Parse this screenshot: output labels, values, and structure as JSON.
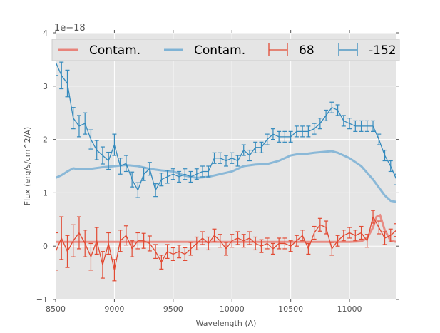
{
  "chart_data": {
    "type": "line",
    "title": "",
    "xlabel": "Wavelength (A)",
    "ylabel": "Flux (erg/s/cm^2/A)",
    "y_offset_label": "1e−18",
    "xlim": [
      8500,
      11400
    ],
    "ylim": [
      -1,
      4
    ],
    "xticks": [
      8500,
      9000,
      9500,
      10000,
      10500,
      11000
    ],
    "xtick_labels": [
      "8500",
      "9000",
      "9500",
      "10000",
      "10500",
      "11000"
    ],
    "yticks": [
      -1,
      0,
      1,
      2,
      3,
      4
    ],
    "ytick_labels": [
      "−1",
      "0",
      "1",
      "2",
      "3",
      "4"
    ],
    "grid": true,
    "legend_position": "top",
    "legend": [
      "Contam.",
      "Contam.",
      "68",
      "-152"
    ],
    "colors": {
      "red": "#e24a33",
      "blue": "#348abd",
      "red_contam": "#e8837a",
      "blue_contam": "#7fb3d5",
      "axes_bg": "#e5e5e5"
    },
    "x": [
      8500,
      8550,
      8600,
      8650,
      8700,
      8750,
      8800,
      8850,
      8900,
      8950,
      9000,
      9050,
      9100,
      9150,
      9200,
      9250,
      9300,
      9350,
      9400,
      9450,
      9500,
      9550,
      9600,
      9650,
      9700,
      9750,
      9800,
      9850,
      9900,
      9950,
      10000,
      10050,
      10100,
      10150,
      10200,
      10250,
      10300,
      10350,
      10400,
      10450,
      10500,
      10550,
      10600,
      10650,
      10700,
      10750,
      10800,
      10850,
      10900,
      10950,
      11000,
      11050,
      11100,
      11150,
      11200,
      11250,
      11300,
      11350,
      11400
    ],
    "series": [
      {
        "name": "68",
        "kind": "errorbar",
        "color": "red",
        "values": [
          -0.1,
          0.15,
          -0.1,
          0.1,
          0.25,
          0.05,
          -0.2,
          0.1,
          -0.35,
          0.05,
          -0.45,
          0.1,
          0.2,
          -0.05,
          0.1,
          0.1,
          0.05,
          -0.1,
          -0.3,
          -0.1,
          -0.15,
          -0.1,
          -0.15,
          -0.05,
          0.05,
          0.15,
          0.05,
          0.2,
          0.1,
          -0.05,
          0.1,
          0.15,
          0.1,
          0.15,
          0.05,
          0.0,
          0.05,
          -0.05,
          0.05,
          0.05,
          0.0,
          0.1,
          0.2,
          -0.05,
          0.25,
          0.4,
          0.35,
          -0.05,
          0.1,
          0.2,
          0.25,
          0.2,
          0.25,
          0.1,
          0.55,
          0.35,
          0.15,
          0.2,
          0.3
        ],
        "errors": [
          0.35,
          0.4,
          0.3,
          0.3,
          0.3,
          0.25,
          0.25,
          0.25,
          0.25,
          0.2,
          0.2,
          0.2,
          0.18,
          0.15,
          0.15,
          0.14,
          0.14,
          0.13,
          0.13,
          0.13,
          0.12,
          0.12,
          0.12,
          0.12,
          0.12,
          0.12,
          0.12,
          0.12,
          0.12,
          0.12,
          0.12,
          0.12,
          0.12,
          0.12,
          0.12,
          0.12,
          0.1,
          0.1,
          0.1,
          0.1,
          0.1,
          0.1,
          0.1,
          0.1,
          0.12,
          0.12,
          0.12,
          0.12,
          0.1,
          0.1,
          0.1,
          0.1,
          0.12,
          0.12,
          0.12,
          0.12,
          0.12,
          0.12,
          0.12
        ]
      },
      {
        "name": "-152",
        "kind": "errorbar",
        "color": "blue",
        "values": [
          3.45,
          3.2,
          3.05,
          2.4,
          2.25,
          2.3,
          2.0,
          1.8,
          1.7,
          1.6,
          1.9,
          1.5,
          1.55,
          1.25,
          1.05,
          1.35,
          1.45,
          1.05,
          1.25,
          1.3,
          1.35,
          1.3,
          1.35,
          1.3,
          1.35,
          1.4,
          1.4,
          1.65,
          1.65,
          1.6,
          1.65,
          1.6,
          1.8,
          1.7,
          1.85,
          1.85,
          2.0,
          2.1,
          2.05,
          2.05,
          2.05,
          2.15,
          2.15,
          2.15,
          2.2,
          2.3,
          2.45,
          2.6,
          2.55,
          2.35,
          2.3,
          2.25,
          2.25,
          2.25,
          2.25,
          2.0,
          1.7,
          1.5,
          1.25
        ],
        "errors": [
          0.25,
          0.25,
          0.25,
          0.2,
          0.2,
          0.2,
          0.18,
          0.18,
          0.16,
          0.16,
          0.2,
          0.15,
          0.15,
          0.14,
          0.14,
          0.12,
          0.12,
          0.12,
          0.12,
          0.12,
          0.1,
          0.1,
          0.1,
          0.1,
          0.1,
          0.1,
          0.1,
          0.1,
          0.1,
          0.1,
          0.1,
          0.1,
          0.1,
          0.1,
          0.1,
          0.1,
          0.1,
          0.1,
          0.1,
          0.1,
          0.1,
          0.1,
          0.1,
          0.1,
          0.1,
          0.1,
          0.1,
          0.1,
          0.1,
          0.1,
          0.1,
          0.1,
          0.1,
          0.1,
          0.1,
          0.1,
          0.1,
          0.1,
          0.1
        ]
      },
      {
        "name": "Contam.",
        "kind": "line",
        "color": "red_contam",
        "x": [
          8500,
          9000,
          9500,
          10000,
          10500,
          11000,
          11100,
          11150,
          11200,
          11230,
          11260,
          11300,
          11350,
          11400
        ],
        "values": [
          0.08,
          0.08,
          0.08,
          0.08,
          0.08,
          0.08,
          0.09,
          0.15,
          0.35,
          0.55,
          0.58,
          0.3,
          0.1,
          0.08
        ]
      },
      {
        "name": "Contam.",
        "kind": "line",
        "color": "blue_contam",
        "x": [
          8500,
          8550,
          8600,
          8650,
          8700,
          8800,
          8900,
          9000,
          9100,
          9200,
          9300,
          9400,
          9500,
          9600,
          9700,
          9800,
          9900,
          10000,
          10100,
          10200,
          10300,
          10400,
          10500,
          10550,
          10600,
          10700,
          10800,
          10850,
          10900,
          11000,
          11100,
          11200,
          11300,
          11350,
          11400
        ],
        "values": [
          1.28,
          1.33,
          1.4,
          1.46,
          1.44,
          1.45,
          1.48,
          1.5,
          1.52,
          1.5,
          1.45,
          1.42,
          1.4,
          1.32,
          1.28,
          1.3,
          1.35,
          1.4,
          1.5,
          1.53,
          1.54,
          1.6,
          1.7,
          1.72,
          1.72,
          1.75,
          1.77,
          1.78,
          1.75,
          1.65,
          1.5,
          1.25,
          0.95,
          0.85,
          0.83
        ]
      }
    ]
  }
}
